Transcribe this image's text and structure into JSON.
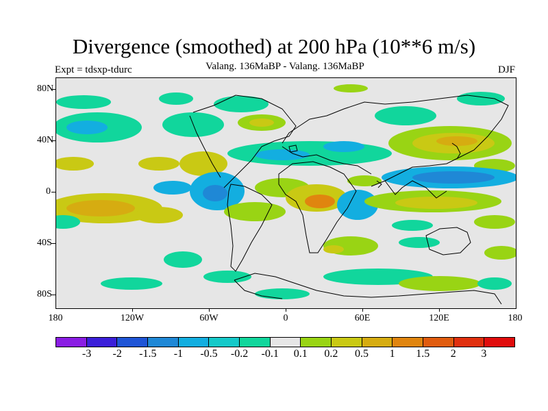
{
  "title": "Divergence (smoothed) at 200 hPa (10**6 m/s)",
  "subtitle": "Valang. 136MaBP - Valang.  136MaBP",
  "experiment": "Expt = tdsxp-tdurc",
  "season": "DJF",
  "map": {
    "projection": "cylindrical-equidistant",
    "lon_range": [
      -180,
      180
    ],
    "lat_range": [
      -90,
      90
    ],
    "lat_labels": [
      "80N",
      "40N",
      "0",
      "40S",
      "80S"
    ],
    "lon_labels": [
      "180",
      "120W",
      "60W",
      "0",
      "60E",
      "120E",
      "180"
    ]
  },
  "colorbar": {
    "labels": [
      "-3",
      "-2",
      "-1.5",
      "-1",
      "-0.5",
      "-0.2",
      "-0.1",
      "0.1",
      "0.2",
      "0.5",
      "1",
      "1.5",
      "2",
      "3"
    ],
    "colors": [
      "#8a1de3",
      "#3b1fd9",
      "#1f55d6",
      "#1f88d6",
      "#13aee0",
      "#15c9c9",
      "#11d69c",
      "#e6e6e6",
      "#99d414",
      "#c9c914",
      "#d6ac11",
      "#e0850f",
      "#e05c0f",
      "#e0300f",
      "#e00d0d"
    ]
  },
  "colors": {
    "ocean_neutral": "#e6e6e6",
    "coastline": "#000000"
  }
}
